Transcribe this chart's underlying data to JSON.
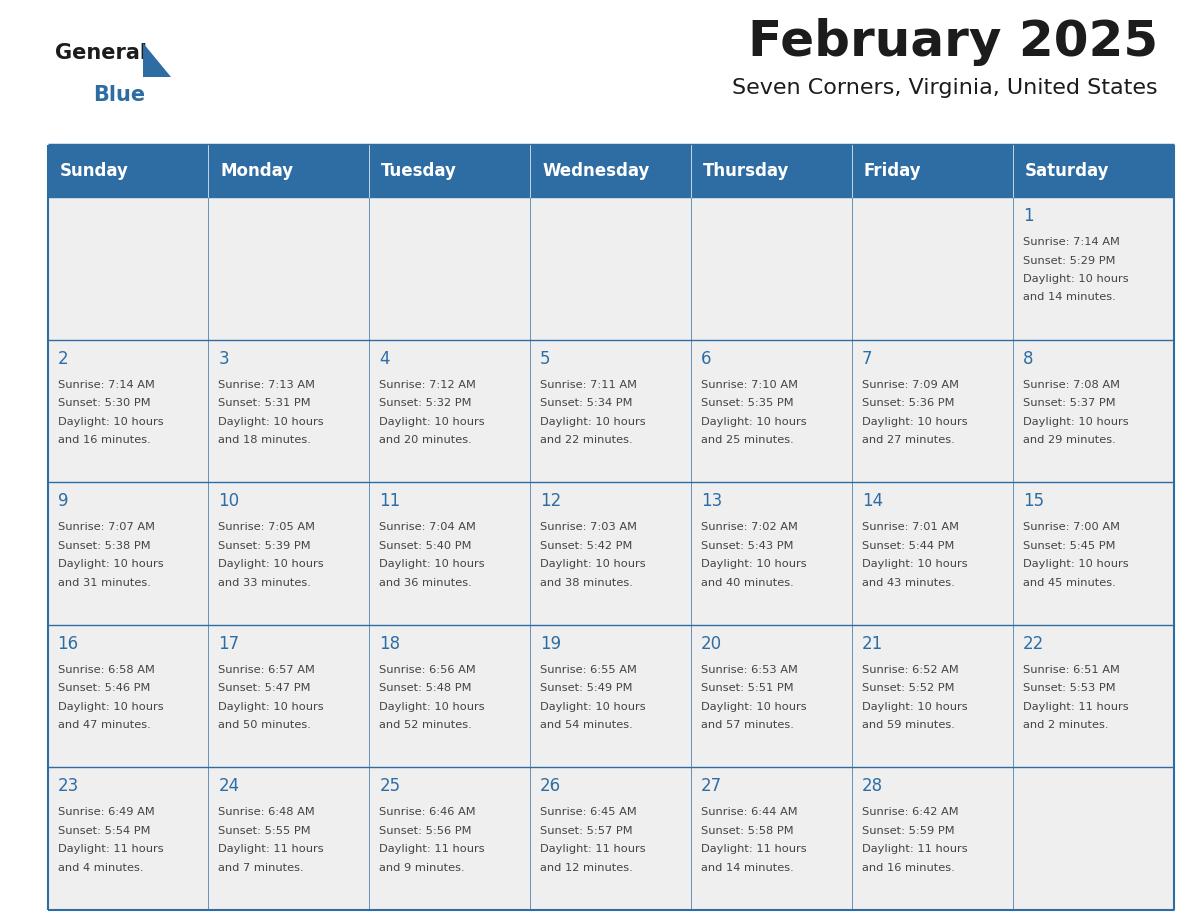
{
  "title": "February 2025",
  "subtitle": "Seven Corners, Virginia, United States",
  "header_bg": "#2E6DA4",
  "header_text": "#FFFFFF",
  "cell_bg": "#EFEFEF",
  "border_color": "#2E6DA4",
  "day_number_color": "#2E6DA4",
  "cell_text_color": "#444444",
  "days_of_week": [
    "Sunday",
    "Monday",
    "Tuesday",
    "Wednesday",
    "Thursday",
    "Friday",
    "Saturday"
  ],
  "calendar_data": [
    [
      null,
      null,
      null,
      null,
      null,
      null,
      {
        "day": 1,
        "sunrise": "7:14 AM",
        "sunset": "5:29 PM",
        "daylight": "10 hours\nand 14 minutes."
      }
    ],
    [
      {
        "day": 2,
        "sunrise": "7:14 AM",
        "sunset": "5:30 PM",
        "daylight": "10 hours\nand 16 minutes."
      },
      {
        "day": 3,
        "sunrise": "7:13 AM",
        "sunset": "5:31 PM",
        "daylight": "10 hours\nand 18 minutes."
      },
      {
        "day": 4,
        "sunrise": "7:12 AM",
        "sunset": "5:32 PM",
        "daylight": "10 hours\nand 20 minutes."
      },
      {
        "day": 5,
        "sunrise": "7:11 AM",
        "sunset": "5:34 PM",
        "daylight": "10 hours\nand 22 minutes."
      },
      {
        "day": 6,
        "sunrise": "7:10 AM",
        "sunset": "5:35 PM",
        "daylight": "10 hours\nand 25 minutes."
      },
      {
        "day": 7,
        "sunrise": "7:09 AM",
        "sunset": "5:36 PM",
        "daylight": "10 hours\nand 27 minutes."
      },
      {
        "day": 8,
        "sunrise": "7:08 AM",
        "sunset": "5:37 PM",
        "daylight": "10 hours\nand 29 minutes."
      }
    ],
    [
      {
        "day": 9,
        "sunrise": "7:07 AM",
        "sunset": "5:38 PM",
        "daylight": "10 hours\nand 31 minutes."
      },
      {
        "day": 10,
        "sunrise": "7:05 AM",
        "sunset": "5:39 PM",
        "daylight": "10 hours\nand 33 minutes."
      },
      {
        "day": 11,
        "sunrise": "7:04 AM",
        "sunset": "5:40 PM",
        "daylight": "10 hours\nand 36 minutes."
      },
      {
        "day": 12,
        "sunrise": "7:03 AM",
        "sunset": "5:42 PM",
        "daylight": "10 hours\nand 38 minutes."
      },
      {
        "day": 13,
        "sunrise": "7:02 AM",
        "sunset": "5:43 PM",
        "daylight": "10 hours\nand 40 minutes."
      },
      {
        "day": 14,
        "sunrise": "7:01 AM",
        "sunset": "5:44 PM",
        "daylight": "10 hours\nand 43 minutes."
      },
      {
        "day": 15,
        "sunrise": "7:00 AM",
        "sunset": "5:45 PM",
        "daylight": "10 hours\nand 45 minutes."
      }
    ],
    [
      {
        "day": 16,
        "sunrise": "6:58 AM",
        "sunset": "5:46 PM",
        "daylight": "10 hours\nand 47 minutes."
      },
      {
        "day": 17,
        "sunrise": "6:57 AM",
        "sunset": "5:47 PM",
        "daylight": "10 hours\nand 50 minutes."
      },
      {
        "day": 18,
        "sunrise": "6:56 AM",
        "sunset": "5:48 PM",
        "daylight": "10 hours\nand 52 minutes."
      },
      {
        "day": 19,
        "sunrise": "6:55 AM",
        "sunset": "5:49 PM",
        "daylight": "10 hours\nand 54 minutes."
      },
      {
        "day": 20,
        "sunrise": "6:53 AM",
        "sunset": "5:51 PM",
        "daylight": "10 hours\nand 57 minutes."
      },
      {
        "day": 21,
        "sunrise": "6:52 AM",
        "sunset": "5:52 PM",
        "daylight": "10 hours\nand 59 minutes."
      },
      {
        "day": 22,
        "sunrise": "6:51 AM",
        "sunset": "5:53 PM",
        "daylight": "11 hours\nand 2 minutes."
      }
    ],
    [
      {
        "day": 23,
        "sunrise": "6:49 AM",
        "sunset": "5:54 PM",
        "daylight": "11 hours\nand 4 minutes."
      },
      {
        "day": 24,
        "sunrise": "6:48 AM",
        "sunset": "5:55 PM",
        "daylight": "11 hours\nand 7 minutes."
      },
      {
        "day": 25,
        "sunrise": "6:46 AM",
        "sunset": "5:56 PM",
        "daylight": "11 hours\nand 9 minutes."
      },
      {
        "day": 26,
        "sunrise": "6:45 AM",
        "sunset": "5:57 PM",
        "daylight": "11 hours\nand 12 minutes."
      },
      {
        "day": 27,
        "sunrise": "6:44 AM",
        "sunset": "5:58 PM",
        "daylight": "11 hours\nand 14 minutes."
      },
      {
        "day": 28,
        "sunrise": "6:42 AM",
        "sunset": "5:59 PM",
        "daylight": "11 hours\nand 16 minutes."
      },
      null
    ]
  ],
  "fig_width": 11.88,
  "fig_height": 9.18,
  "dpi": 100
}
